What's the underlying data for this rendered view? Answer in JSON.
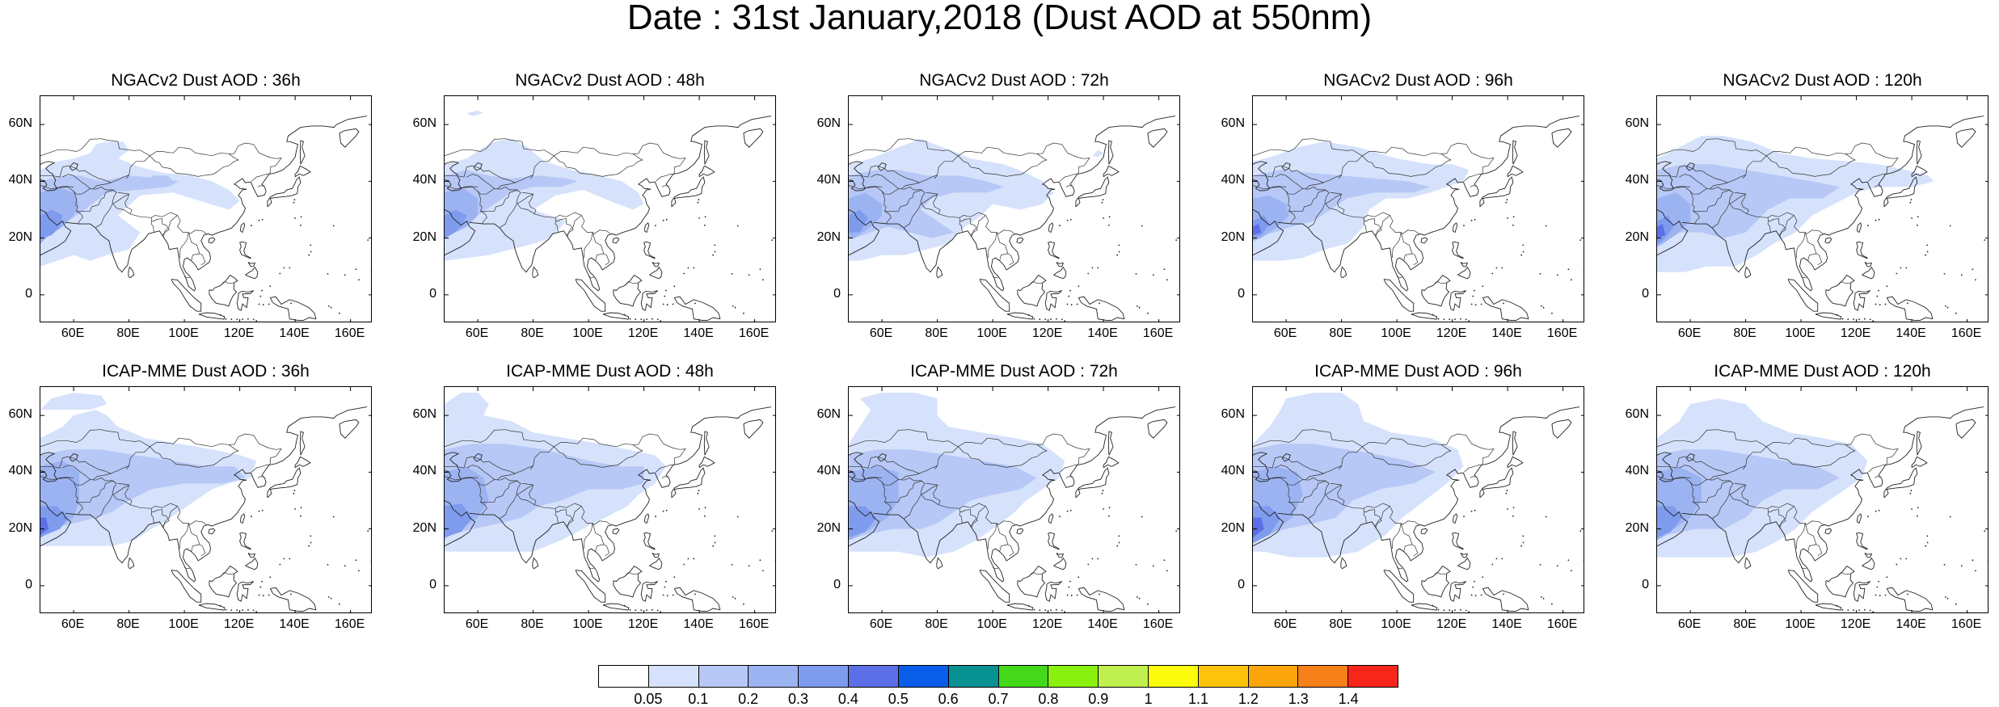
{
  "title": "Date : 31st January,2018 (Dust AOD at 550nm)",
  "lat_labels": [
    "60N",
    "40N",
    "20N",
    "0"
  ],
  "lon_labels": [
    "60E",
    "80E",
    "100E",
    "120E",
    "140E",
    "160E"
  ],
  "map_extent": {
    "lon_min": 48,
    "lon_max": 168,
    "lat_min": -10,
    "lat_max": 70
  },
  "panels": [
    {
      "title": "NGACv2 Dust AOD : 36h"
    },
    {
      "title": "NGACv2 Dust AOD : 48h"
    },
    {
      "title": "NGACv2 Dust AOD : 72h"
    },
    {
      "title": "NGACv2 Dust AOD : 96h"
    },
    {
      "title": "NGACv2 Dust AOD : 120h"
    },
    {
      "title": "ICAP-MME Dust AOD : 36h"
    },
    {
      "title": "ICAP-MME Dust AOD : 48h"
    },
    {
      "title": "ICAP-MME Dust AOD : 72h"
    },
    {
      "title": "ICAP-MME Dust AOD : 96h"
    },
    {
      "title": "ICAP-MME Dust AOD : 120h"
    }
  ],
  "colorbar": {
    "labels": [
      "0.05",
      "0.1",
      "0.2",
      "0.3",
      "0.4",
      "0.5",
      "0.6",
      "0.7",
      "0.8",
      "0.9",
      "1",
      "1.1",
      "1.2",
      "1.3",
      "1.4"
    ],
    "colors": [
      "#ffffff",
      "#d6e2fb",
      "#b7c8f6",
      "#9cb3f2",
      "#7f9bee",
      "#5c6fe6",
      "#0a5de8",
      "#079191",
      "#45d81a",
      "#8af00f",
      "#c0f050",
      "#fbfb0b",
      "#fbc40b",
      "#fba50b",
      "#f8801a",
      "#f8261a"
    ]
  }
}
